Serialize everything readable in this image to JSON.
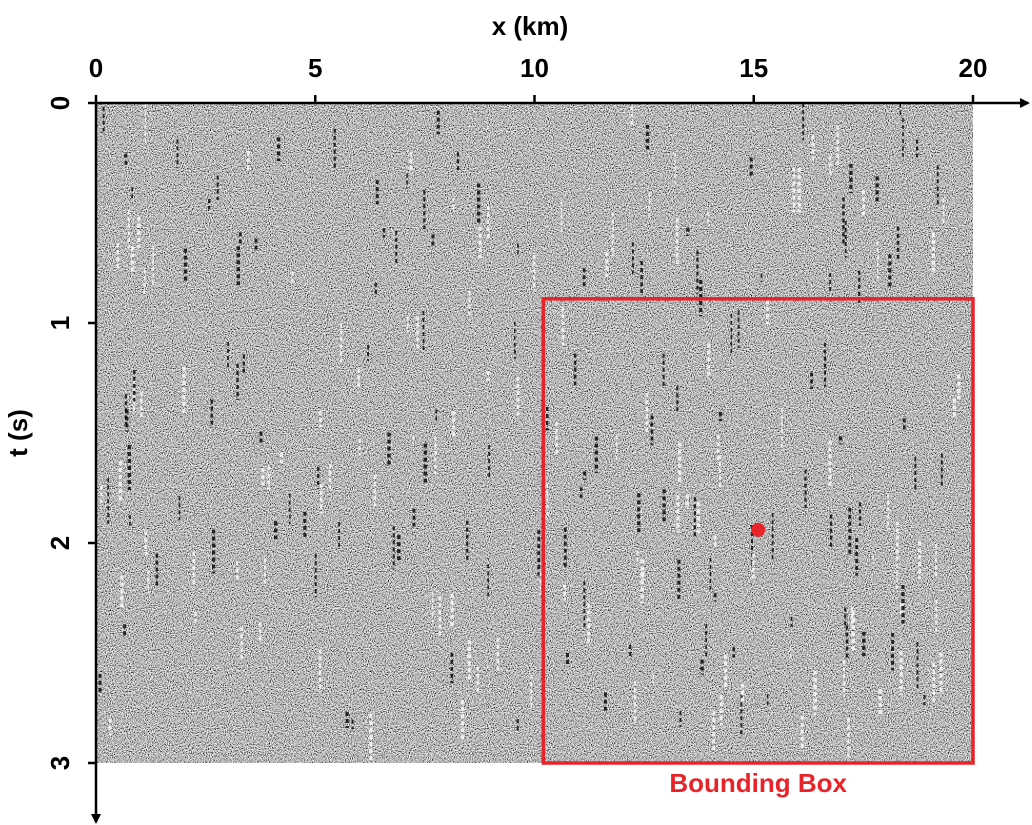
{
  "chart_data": {
    "type": "image",
    "x_label": "x (km)",
    "y_label": "t (s)",
    "xlim": [
      0,
      20
    ],
    "xticks": [
      0,
      5,
      10,
      15,
      20
    ],
    "ylim": [
      3,
      0
    ],
    "yticks": [
      0,
      1,
      2,
      3
    ],
    "box": {
      "label": "Bounding Box",
      "x": [
        10.2,
        20
      ],
      "y": [
        0.89,
        3
      ],
      "color": "#e8232a"
    },
    "point": {
      "x": 15.1,
      "y": 1.94,
      "color": "#e8232a"
    }
  }
}
